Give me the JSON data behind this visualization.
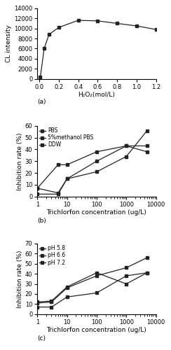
{
  "panel_a": {
    "x": [
      0.01,
      0.05,
      0.1,
      0.2,
      0.4,
      0.6,
      0.8,
      1.0,
      1.2
    ],
    "y": [
      300,
      6000,
      8800,
      10200,
      11600,
      11500,
      11000,
      10500,
      9800
    ],
    "xlabel": "H₂O₂(mol/L)",
    "ylabel": "CL intensity",
    "ylim": [
      0,
      14000
    ],
    "yticks": [
      0,
      2000,
      4000,
      6000,
      8000,
      10000,
      12000,
      14000
    ],
    "xlim": [
      -0.02,
      1.2
    ],
    "xticks": [
      0,
      0.2,
      0.4,
      0.6,
      0.8,
      1.0,
      1.2
    ],
    "label": "(a)"
  },
  "panel_b": {
    "series": [
      {
        "label": "PBS",
        "x": [
          1,
          5,
          10,
          100,
          1000,
          5000
        ],
        "y": [
          7,
          3,
          15,
          21,
          34,
          56
        ]
      },
      {
        "label": "5%methanol PBS",
        "x": [
          1,
          5,
          10,
          100,
          1000,
          5000
        ],
        "y": [
          2,
          2,
          15,
          30,
          43,
          43
        ]
      },
      {
        "label": "DDW",
        "x": [
          1,
          5,
          10,
          100,
          1000,
          5000
        ],
        "y": [
          7,
          27,
          27,
          38,
          43,
          38
        ]
      }
    ],
    "xlabel": "Trichlorfon concentration (ug/L)",
    "ylabel": "Inhibition rate (%)",
    "ylim": [
      0,
      60
    ],
    "yticks": [
      0,
      10,
      20,
      30,
      40,
      50,
      60
    ],
    "xlim_min": 1,
    "xlim_max": 10000,
    "label": "(b)"
  },
  "panel_c": {
    "series": [
      {
        "label": "pH 5.8",
        "x": [
          1,
          3,
          10,
          100,
          1000,
          5000
        ],
        "y": [
          12,
          13,
          27,
          41,
          30,
          41
        ]
      },
      {
        "label": "pH 6.6",
        "x": [
          1,
          3,
          10,
          100,
          1000,
          5000
        ],
        "y": [
          7,
          7,
          17,
          21,
          38,
          41
        ]
      },
      {
        "label": "pH 7.2",
        "x": [
          1,
          3,
          10,
          100,
          1000,
          5000
        ],
        "y": [
          11,
          12,
          26,
          38,
          46,
          56
        ]
      }
    ],
    "xlabel": "Trichlorfon concentration (ug/L)",
    "ylabel": "Inhibition rate (%)",
    "ylim": [
      0,
      70
    ],
    "yticks": [
      0,
      10,
      20,
      30,
      40,
      50,
      60,
      70
    ],
    "xlim_min": 1,
    "xlim_max": 10000,
    "label": "(c)"
  },
  "line_color": "#222222",
  "marker": "s",
  "markersize": 3,
  "linewidth": 0.9,
  "fontsize": 6.5,
  "tick_fontsize": 6,
  "legend_fontsize": 5.5
}
